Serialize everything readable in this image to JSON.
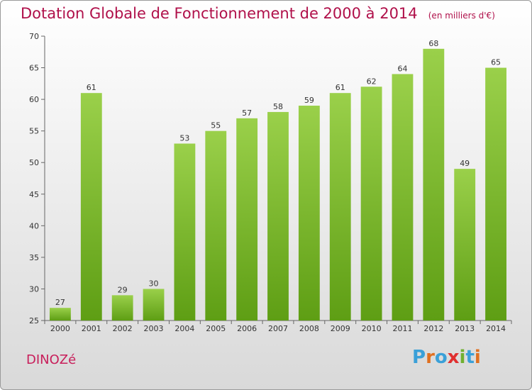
{
  "header": {
    "title": "Dotation Globale de Fonctionnement de 2000 à 2014",
    "subtitle": "(en milliers d'€)"
  },
  "footer": {
    "commune": "DINOZé",
    "logo_text": "Proxiti"
  },
  "colors": {
    "bar_top": "#9ad04a",
    "bar_bottom": "#5e9e14",
    "title": "#b0104a",
    "logo": [
      "#3aa0d8",
      "#e07020",
      "#3aa0d8",
      "#e03030",
      "#70b030",
      "#3aa0d8",
      "#e07020"
    ]
  },
  "chart_data": {
    "type": "bar",
    "title": "Dotation Globale de Fonctionnement de 2000 à 2014",
    "subtitle": "(en milliers d'€)",
    "xlabel": "",
    "ylabel": "",
    "categories": [
      "2000",
      "2001",
      "2002",
      "2003",
      "2004",
      "2005",
      "2006",
      "2007",
      "2008",
      "2009",
      "2010",
      "2011",
      "2012",
      "2013",
      "2014"
    ],
    "values": [
      27,
      61,
      29,
      30,
      53,
      55,
      57,
      58,
      59,
      61,
      62,
      64,
      68,
      49,
      65
    ],
    "ylim": [
      25,
      70
    ],
    "yticks": [
      25,
      30,
      35,
      40,
      45,
      50,
      55,
      60,
      65,
      70
    ],
    "grid": false,
    "legend": "none"
  }
}
